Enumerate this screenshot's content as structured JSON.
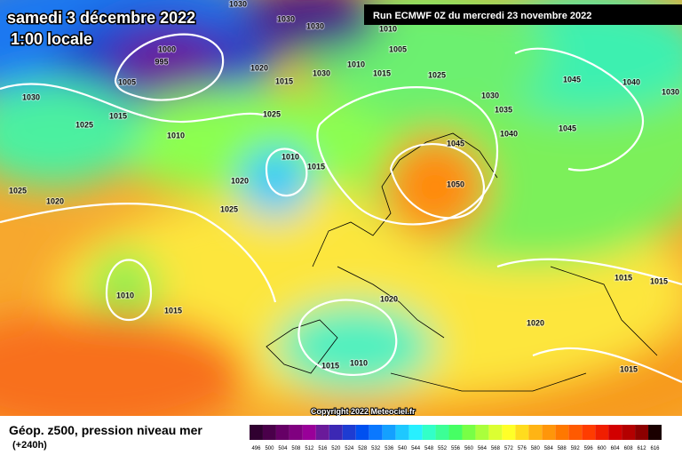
{
  "header": {
    "date": "samedi 3 décembre 2022",
    "time": "1:00 locale",
    "run": "Run ECMWF 0Z du mercredi 23 novembre 2022"
  },
  "copyright": "Copyright 2022 Meteociel.fr",
  "footer": {
    "title": "Géop. z500, pression niveau mer",
    "lead": "(+240h)"
  },
  "pressure_labels": [
    "1030",
    "1030",
    "1030",
    "1010",
    "1005",
    "1000",
    "995",
    "1005",
    "1020",
    "1015",
    "1030",
    "1010",
    "1015",
    "1025",
    "1045",
    "1040",
    "1030",
    "1030",
    "1035",
    "1015",
    "1025",
    "1025",
    "1010",
    "1040",
    "1045",
    "1045",
    "1010",
    "1015",
    "1020",
    "1050",
    "1025",
    "1020",
    "1025",
    "1010",
    "1015",
    "1020",
    "1015",
    "1015",
    "1020",
    "1015",
    "1010",
    "1015",
    "1030"
  ],
  "scale": {
    "labels": [
      "496",
      "500",
      "504",
      "508",
      "512",
      "516",
      "520",
      "524",
      "528",
      "532",
      "536",
      "540",
      "544",
      "548",
      "552",
      "556",
      "560",
      "564",
      "568",
      "572",
      "576",
      "580",
      "584",
      "588",
      "592",
      "596",
      "600",
      "604",
      "608",
      "612",
      "616"
    ],
    "colors": [
      "#300030",
      "#4a004a",
      "#660066",
      "#800080",
      "#990099",
      "#6a1a9a",
      "#3c28b4",
      "#1e3cd2",
      "#0050f0",
      "#0a78ff",
      "#14a0ff",
      "#1ec8ff",
      "#28f0ff",
      "#32ffc8",
      "#3cff96",
      "#46ff64",
      "#78ff46",
      "#aaff3c",
      "#dcff32",
      "#ffff28",
      "#ffdc1e",
      "#ffb414",
      "#ff960a",
      "#ff7800",
      "#ff5a00",
      "#ff3c00",
      "#f01e00",
      "#d20000",
      "#b40000",
      "#8c0000",
      "#1a0000"
    ]
  }
}
